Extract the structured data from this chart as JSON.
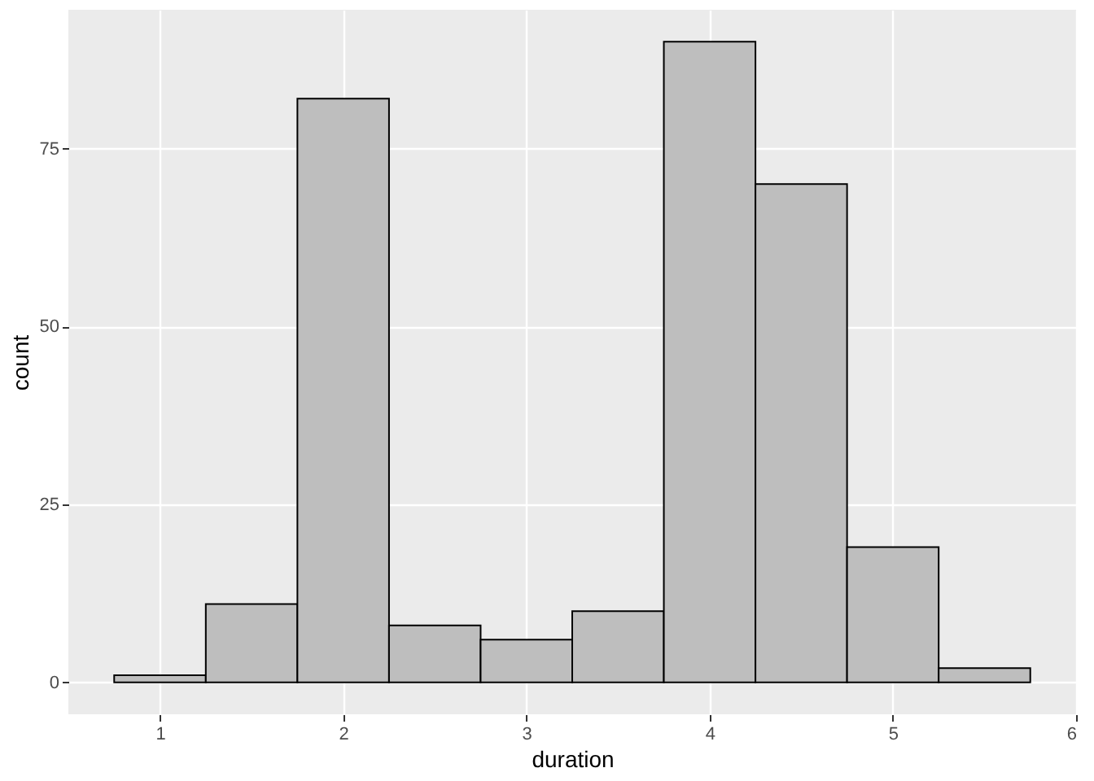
{
  "chart_data": {
    "type": "histogram",
    "xlabel": "duration",
    "ylabel": "count",
    "bins": [
      0.75,
      1.25,
      1.75,
      2.25,
      2.75,
      3.25,
      3.75,
      4.25,
      4.75,
      5.25,
      5.75
    ],
    "values": [
      1,
      11,
      82,
      8,
      6,
      10,
      90,
      70,
      19,
      2
    ],
    "color": "#bebebe",
    "xlim": [
      0.5,
      6
    ],
    "xticks": [
      1,
      2,
      3,
      4,
      5,
      6
    ],
    "ylim": [
      -4.5,
      94.5
    ],
    "yticks": [
      0,
      25,
      50,
      75
    ],
    "grid": true
  }
}
